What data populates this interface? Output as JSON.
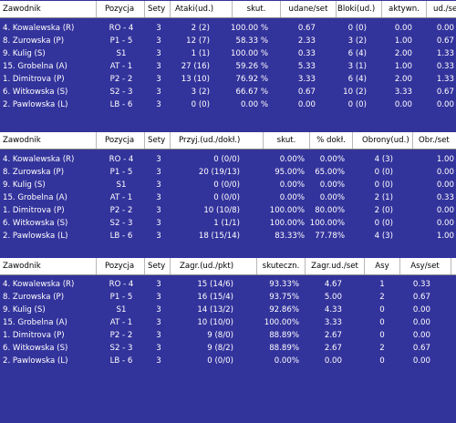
{
  "tables": [
    {
      "headers": [
        "Zawodnik",
        "Pozycja",
        "Sety",
        "Ataki(ud.)",
        "skut.",
        "udane/set",
        "Bloki(ud.)",
        "aktywn.",
        "ud./set"
      ],
      "rows": [
        [
          "4. Kowalewska (R)",
          "RO - 4",
          "3",
          "2 (2)",
          "100.00 %",
          "0.67",
          "0 (0)",
          "0.00",
          "0.00"
        ],
        [
          "8. Zurowska (P)",
          "P1 - 5",
          "3",
          "12 (7)",
          "58.33 %",
          "2.33",
          "3 (2)",
          "1.00",
          "0.67"
        ],
        [
          "9. Kulig (S)",
          "S1",
          "3",
          "1 (1)",
          "100.00 %",
          "0.33",
          "6 (4)",
          "2.00",
          "1.33"
        ],
        [
          "15. Grobelna (A)",
          "AT - 1",
          "3",
          "27 (16)",
          "59.26 %",
          "5.33",
          "3 (1)",
          "1.00",
          "0.33"
        ],
        [
          "1. Dimitrova (P)",
          "P2 - 2",
          "3",
          "13 (10)",
          "76.92 %",
          "3.33",
          "6 (4)",
          "2.00",
          "1.33"
        ],
        [
          "6. Witkowska (S)",
          "S2 - 3",
          "3",
          "3 (2)",
          "66.67 %",
          "0.67",
          "10 (2)",
          "3.33",
          "0.67"
        ],
        [
          "2. Pawlowska (L)",
          "LB - 6",
          "3",
          "0 (0)",
          "0.00 %",
          "0.00",
          "0 (0)",
          "0.00",
          "0.00"
        ]
      ]
    },
    {
      "headers": [
        "Zawodnik",
        "Pozycja",
        "Sety",
        "Przyj.(ud./dokł.)",
        "skut.",
        "% dokł.",
        "Obrony(ud.)",
        "Obr./set"
      ],
      "rows": [
        [
          "4. Kowalewska (R)",
          "RO - 4",
          "3",
          "0 (0/0)",
          "0.00%",
          "0.00%",
          "4 (3)",
          "1.00"
        ],
        [
          "8. Zurowska (P)",
          "P1 - 5",
          "3",
          "20 (19/13)",
          "95.00%",
          "65.00%",
          "0 (0)",
          "0.00"
        ],
        [
          "9. Kulig (S)",
          "S1",
          "3",
          "0 (0/0)",
          "0.00%",
          "0.00%",
          "0 (0)",
          "0.00"
        ],
        [
          "15. Grobelna (A)",
          "AT - 1",
          "3",
          "0 (0/0)",
          "0.00%",
          "0.00%",
          "2 (1)",
          "0.33"
        ],
        [
          "1. Dimitrova (P)",
          "P2 - 2",
          "3",
          "10 (10/8)",
          "100.00%",
          "80.00%",
          "2 (0)",
          "0.00"
        ],
        [
          "6. Witkowska (S)",
          "S2 - 3",
          "3",
          "1 (1/1)",
          "100.00%",
          "100.00%",
          "0 (0)",
          "0.00"
        ],
        [
          "2. Pawlowska (L)",
          "LB - 6",
          "3",
          "18 (15/14)",
          "83.33%",
          "77.78%",
          "4 (3)",
          "1.00"
        ]
      ]
    },
    {
      "headers": [
        "Zawodnik",
        "Pozycja",
        "Sety",
        "Zagr.(ud./pkt)",
        "skuteczn.",
        "Zagr.ud./set",
        "Asy",
        "Asy/set"
      ],
      "rows": [
        [
          "4. Kowalewska (R)",
          "RO - 4",
          "3",
          "15 (14/6)",
          "93.33%",
          "4.67",
          "1",
          "0.33"
        ],
        [
          "8. Zurowska (P)",
          "P1 - 5",
          "3",
          "16 (15/4)",
          "93.75%",
          "5.00",
          "2",
          "0.67"
        ],
        [
          "9. Kulig (S)",
          "S1",
          "3",
          "14 (13/2)",
          "92.86%",
          "4.33",
          "0",
          "0.00"
        ],
        [
          "15. Grobelna (A)",
          "AT - 1",
          "3",
          "10 (10/0)",
          "100.00%",
          "3.33",
          "0",
          "0.00"
        ],
        [
          "1. Dimitrova (P)",
          "P2 - 2",
          "3",
          "9 (8/0)",
          "88.89%",
          "2.67",
          "0",
          "0.00"
        ],
        [
          "6. Witkowska (S)",
          "S2 - 3",
          "3",
          "9 (8/2)",
          "88.89%",
          "2.67",
          "2",
          "0.67"
        ],
        [
          "2. Pawlowska (L)",
          "LB - 6",
          "3",
          "0 (0/0)",
          "0.00%",
          "0.00",
          "0",
          "0.00"
        ]
      ]
    }
  ],
  "colors": {
    "background": "#33339c",
    "header_bg": "#ffffff",
    "header_text": "#000000",
    "row_text": "#ffffff"
  }
}
